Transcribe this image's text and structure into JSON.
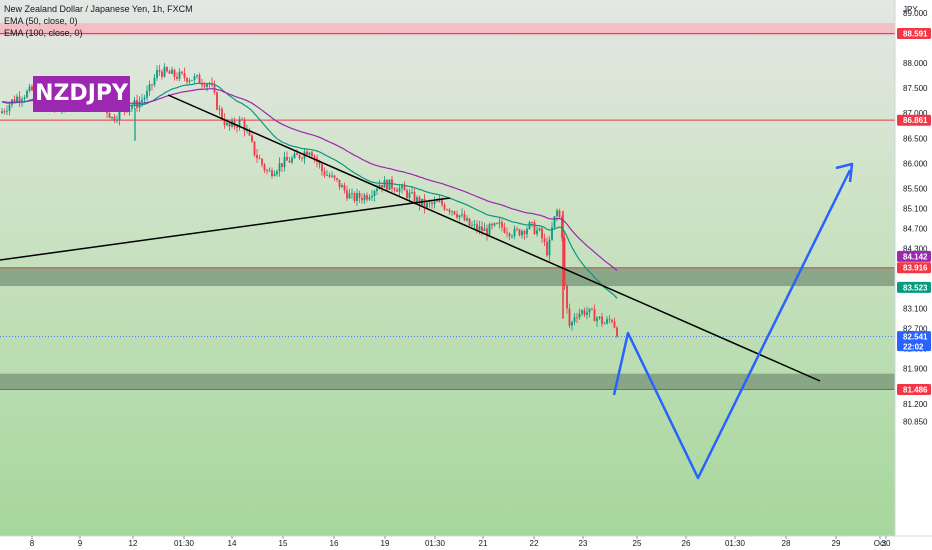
{
  "chart_data": {
    "type": "candlestick",
    "title": "New Zealand Dollar / Japanese Yen, 1h, FXCM",
    "indicators": [
      "EMA (50, close, 0)",
      "EMA (100, close, 0)"
    ],
    "badge": "NZDJPY",
    "currency": "JPY",
    "ylim": [
      80.6,
      89.4
    ],
    "y_ticks": [
      "89.000",
      "88.600",
      "88.000",
      "87.500",
      "87.000",
      "86.500",
      "86.000",
      "85.500",
      "85.100",
      "84.700",
      "84.300",
      "83.900",
      "83.100",
      "82.700",
      "82.300",
      "81.900",
      "81.500",
      "81.200",
      "80.850"
    ],
    "x_ticks": [
      "8",
      "9",
      "12",
      "01:30",
      "14",
      "15",
      "16",
      "19",
      "01:30",
      "21",
      "22",
      "23",
      "25",
      "26",
      "01:30",
      "28",
      "29",
      "30",
      "Oct"
    ],
    "price_tags": [
      {
        "value": "88.591",
        "kind": "level",
        "color": "#f23645"
      },
      {
        "value": "86.861",
        "kind": "level",
        "color": "#f23645"
      },
      {
        "value": "84.142",
        "kind": "ema100",
        "color": "#9c27b0"
      },
      {
        "value": "83.916",
        "kind": "level",
        "color": "#f23645"
      },
      {
        "value": "83.523",
        "kind": "ema50",
        "color": "#089981"
      },
      {
        "value": "82.541",
        "kind": "last",
        "color": "#2962ff",
        "extra": "22:02"
      },
      {
        "value": "81.486",
        "kind": "level",
        "color": "#f23645"
      }
    ],
    "zones": [
      {
        "from": 88.55,
        "to": 88.8,
        "color": "#f7b6c0"
      },
      {
        "from": 83.55,
        "to": 83.92,
        "color": "#7f9c7f"
      },
      {
        "from": 81.486,
        "to": 81.8,
        "color": "#7f9c7f"
      }
    ],
    "bg_colors": {
      "top": "#d9ded9",
      "mid": "#c6e2c0",
      "low": "#a9d8a0"
    },
    "colors": {
      "up": "#089981",
      "down": "#f23645",
      "trend": "#000000",
      "projection": "#2962ff"
    }
  }
}
